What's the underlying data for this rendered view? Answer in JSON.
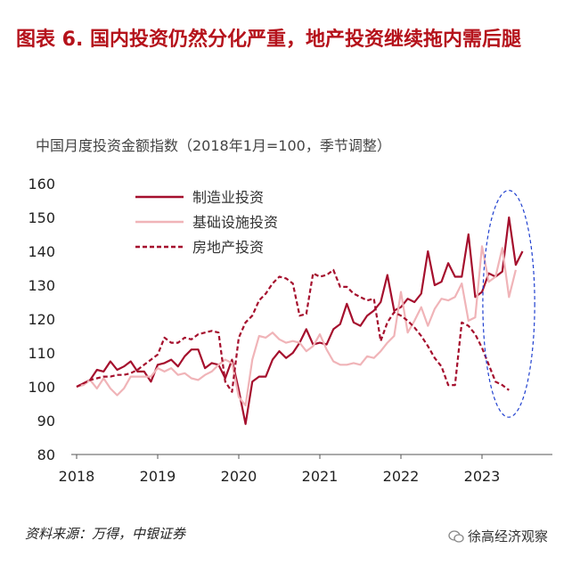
{
  "header": {
    "title": "图表 6. 国内投资仍然分化严重，地产投资继续拖内需后腿"
  },
  "chart_data": {
    "type": "line",
    "subtitle": "中国月度投资金额指数（2018年1月=100，季节调整）",
    "xlabel": "",
    "ylabel": "",
    "ylim": [
      80,
      160
    ],
    "yticks": [
      80,
      90,
      100,
      110,
      120,
      130,
      140,
      150,
      160
    ],
    "xlim": [
      2018.0,
      2023.75
    ],
    "xticks": [
      2018,
      2019,
      2020,
      2021,
      2022,
      2023
    ],
    "xtick_labels": [
      "2018",
      "2019",
      "2020",
      "2021",
      "2022",
      "2023"
    ],
    "x_start": 2018.0,
    "x_step_months": 1,
    "legend_position": "top-left",
    "series": [
      {
        "name": "制造业投资",
        "color": "#a50f2d",
        "style": "solid",
        "values": [
          100,
          101,
          102,
          105,
          104.5,
          107.5,
          105,
          106,
          107.5,
          104.5,
          104.5,
          101.5,
          106.5,
          107,
          108,
          106,
          109,
          111,
          111,
          105.5,
          107,
          106.5,
          102.5,
          108,
          99,
          89,
          101.5,
          103,
          103,
          108,
          110.5,
          108.5,
          110,
          113,
          117,
          112.5,
          113,
          112.5,
          117,
          118.5,
          124.5,
          119,
          118,
          121,
          122.5,
          125,
          133,
          122.5,
          123.5,
          126,
          125,
          127.5,
          140,
          130,
          131,
          136.5,
          132.5,
          132.5,
          145,
          126.5,
          128,
          133.5,
          132.5,
          134,
          150,
          136,
          140
        ]
      },
      {
        "name": "基础设施投资",
        "color": "#f0b4b8",
        "style": "solid",
        "values": [
          100,
          100.5,
          102,
          99.5,
          102.5,
          99.5,
          97.5,
          99.5,
          103,
          103,
          103,
          103,
          105.5,
          104.5,
          105.5,
          103.5,
          104,
          102.5,
          102,
          103.5,
          104.5,
          106.5,
          108,
          107,
          97,
          94.5,
          108,
          115,
          114.5,
          116,
          114,
          113,
          113.5,
          113,
          110.5,
          112,
          115.5,
          111,
          107.5,
          106.5,
          106.5,
          107,
          106.5,
          109,
          108.5,
          110.5,
          113,
          115,
          128,
          116,
          119.5,
          123.5,
          118,
          123,
          126,
          125.5,
          126.5,
          130.5,
          119.5,
          120.5,
          141.5,
          131,
          132.5,
          141,
          126.5,
          134.5
        ]
      },
      {
        "name": "房地产投资",
        "color": "#a50f2d",
        "style": "dashed",
        "values": [
          100,
          101,
          102,
          102.5,
          103,
          103,
          103.5,
          103.5,
          104,
          105,
          106.5,
          108,
          109.5,
          114.5,
          113,
          113,
          114.5,
          114,
          115.5,
          116,
          116.5,
          116,
          101.5,
          98.5,
          114.5,
          119,
          121,
          125.5,
          127.5,
          130.5,
          132.5,
          132,
          130.5,
          121,
          121.5,
          133.5,
          132.5,
          133,
          134.5,
          129.5,
          129.5,
          127.5,
          126.5,
          125.5,
          126,
          113.5,
          119,
          122,
          121,
          119.5,
          117.5,
          115,
          112,
          108.5,
          106,
          100.5,
          100.5,
          119,
          118,
          115.5,
          111.5,
          106.5,
          101.5,
          100.5,
          99
        ]
      }
    ],
    "annotations": [
      {
        "type": "dashed-ellipse",
        "color": "#1f3fcf",
        "x_center": 2023.33,
        "y_center": 124.5,
        "x_radius": 0.32,
        "y_radius": 33.5
      }
    ]
  },
  "footer": {
    "source": "资料来源：万得，中银证券",
    "watermark": "徐高经济观察"
  }
}
